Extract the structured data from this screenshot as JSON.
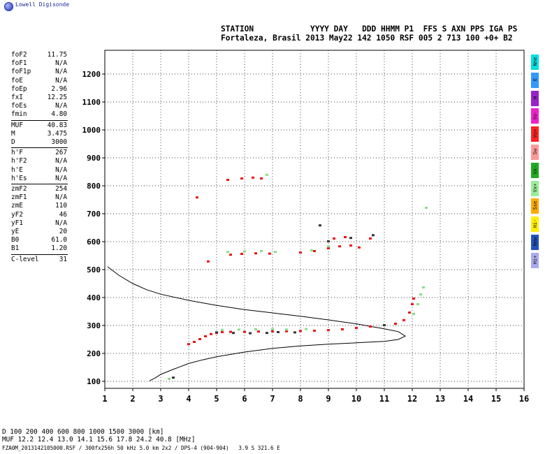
{
  "logo_text": "Lowell Digisonde",
  "header": {
    "line1": "STATION            YYYY DAY   DDD HHMM P1  FFS S AXN PPS IGA PS",
    "line2": "Fortaleza, Brasil 2013 May22 142 1050 RSF 005 2 713 100 +0+ B2"
  },
  "params": {
    "group1": [
      {
        "label": "foF2",
        "value": "11.75"
      },
      {
        "label": "foF1",
        "value": "N/A"
      },
      {
        "label": "foF1p",
        "value": "N/A"
      },
      {
        "label": "foE",
        "value": "N/A"
      },
      {
        "label": "foEp",
        "value": "2.96"
      },
      {
        "label": "fxI",
        "value": "12.25"
      },
      {
        "label": "foEs",
        "value": "N/A"
      },
      {
        "label": "fmin",
        "value": "4.80"
      }
    ],
    "group2": [
      {
        "label": "MUF",
        "value": "40.83"
      },
      {
        "label": "M",
        "value": "3.475"
      },
      {
        "label": "D",
        "value": "3000"
      }
    ],
    "group3": [
      {
        "label": "h'F",
        "value": "267"
      },
      {
        "label": "h'F2",
        "value": "N/A"
      },
      {
        "label": "h'E",
        "value": "N/A"
      },
      {
        "label": "h'Es",
        "value": "N/A"
      }
    ],
    "group4": [
      {
        "label": "zmF2",
        "value": "254"
      },
      {
        "label": "zmF1",
        "value": "N/A"
      },
      {
        "label": "zmE",
        "value": "110"
      },
      {
        "label": "yF2",
        "value": "46"
      },
      {
        "label": "yF1",
        "value": "N/A"
      },
      {
        "label": "yE",
        "value": "20"
      },
      {
        "label": "B0",
        "value": "61.0"
      },
      {
        "label": "B1",
        "value": "1.20"
      }
    ],
    "group5": [
      {
        "label": "C-level",
        "value": "31"
      }
    ]
  },
  "legend": [
    {
      "label": "Nne",
      "color": "#00e0e0"
    },
    {
      "label": "E",
      "color": "#3399ff"
    },
    {
      "label": "W",
      "color": "#9922cc"
    },
    {
      "label": "Vo-",
      "color": "#ee22cc"
    },
    {
      "label": "Vo+",
      "color": "#ff2222"
    },
    {
      "label": "Sw",
      "color": "#ff9999"
    },
    {
      "label": "Vx-",
      "color": "#22aa22"
    },
    {
      "label": "Vx+",
      "color": "#99ee99"
    },
    {
      "label": "Sse",
      "color": "#ffaa00"
    },
    {
      "label": "Hi-",
      "color": "#ffee00"
    },
    {
      "label": "New",
      "color": "#2255bb"
    },
    {
      "label": "Hi+",
      "color": "#aaaaee"
    }
  ],
  "mufTable": {
    "row1": "D     100   200   400   600   800  1000  1500  3000   [km]",
    "row2": "MUF  12.2  12.4  13.0  14.1  15.6  17.8  24.2  40.8   [MHz]"
  },
  "footer": "FZA0M_2013142105000.RSF / 300fx256h 50 kHz 5.0 km 2x2 / DPS-4 (904-904)   3.9 S 321.6 E",
  "chart_data": {
    "type": "scatter",
    "xlim": [
      1,
      16
    ],
    "ylim": [
      75,
      1285
    ],
    "x_ticks": [
      1,
      2,
      3,
      4,
      5,
      6,
      7,
      8,
      9,
      10,
      11,
      12,
      13,
      14,
      15,
      16
    ],
    "y_ticks": [
      100,
      200,
      300,
      400,
      500,
      600,
      700,
      800,
      900,
      1000,
      1100,
      1200
    ],
    "grid": true,
    "profile_curve": [
      [
        1.1,
        510
      ],
      [
        1.5,
        480
      ],
      [
        2.0,
        450
      ],
      [
        2.5,
        428
      ],
      [
        3.0,
        412
      ],
      [
        4.0,
        390
      ],
      [
        5.0,
        372
      ],
      [
        6.0,
        357
      ],
      [
        7.0,
        345
      ],
      [
        8.0,
        333
      ],
      [
        9.0,
        320
      ],
      [
        10.0,
        306
      ],
      [
        10.5,
        297
      ],
      [
        11.0,
        288
      ],
      [
        11.5,
        278
      ],
      [
        11.75,
        262
      ],
      [
        11.5,
        250
      ],
      [
        11.0,
        243
      ],
      [
        10.0,
        238
      ],
      [
        9.0,
        233
      ],
      [
        8.0,
        227
      ],
      [
        7.0,
        218
      ],
      [
        6.0,
        205
      ],
      [
        5.0,
        188
      ],
      [
        4.5,
        177
      ],
      [
        4.0,
        164
      ],
      [
        3.5,
        145
      ],
      [
        3.0,
        125
      ],
      [
        2.8,
        112
      ],
      [
        2.6,
        102
      ]
    ],
    "series": [
      {
        "color": "#ee1111",
        "points": [
          [
            4.0,
            232
          ],
          [
            4.2,
            240
          ],
          [
            4.4,
            250
          ],
          [
            4.6,
            260
          ],
          [
            4.8,
            268
          ],
          [
            5.0,
            272
          ],
          [
            5.2,
            275
          ],
          [
            5.5,
            276
          ],
          [
            6.0,
            276
          ],
          [
            6.5,
            277
          ],
          [
            7.0,
            278
          ],
          [
            7.5,
            278
          ],
          [
            8.0,
            279
          ],
          [
            8.5,
            280
          ],
          [
            9.0,
            282
          ],
          [
            9.5,
            285
          ],
          [
            10.0,
            290
          ],
          [
            10.5,
            295
          ],
          [
            11.0,
            300
          ],
          [
            11.4,
            305
          ],
          [
            11.7,
            318
          ],
          [
            11.9,
            345
          ],
          [
            12.0,
            375
          ],
          [
            12.05,
            395
          ],
          [
            4.3,
            757
          ],
          [
            5.4,
            820
          ],
          [
            5.9,
            825
          ],
          [
            6.3,
            828
          ],
          [
            6.6,
            825
          ],
          [
            5.5,
            552
          ],
          [
            5.9,
            555
          ],
          [
            6.4,
            557
          ],
          [
            6.9,
            556
          ],
          [
            8.0,
            560
          ],
          [
            8.5,
            565
          ],
          [
            9.0,
            575
          ],
          [
            9.4,
            582
          ],
          [
            9.8,
            585
          ],
          [
            10.1,
            578
          ],
          [
            10.5,
            610
          ],
          [
            9.2,
            610
          ],
          [
            9.6,
            615
          ],
          [
            4.7,
            528
          ]
        ]
      },
      {
        "color": "#88dd88",
        "points": [
          [
            5.2,
            283
          ],
          [
            5.8,
            284
          ],
          [
            6.4,
            285
          ],
          [
            7.0,
            286
          ],
          [
            7.5,
            284
          ],
          [
            8.2,
            286
          ],
          [
            12.05,
            340
          ],
          [
            12.2,
            375
          ],
          [
            12.3,
            410
          ],
          [
            12.4,
            435
          ],
          [
            5.4,
            562
          ],
          [
            6.0,
            564
          ],
          [
            6.6,
            565
          ],
          [
            7.1,
            562
          ],
          [
            8.4,
            568
          ],
          [
            9.0,
            582
          ],
          [
            6.8,
            838
          ],
          [
            12.5,
            720
          ],
          [
            3.3,
            108
          ]
        ]
      },
      {
        "color": "#333333",
        "points": [
          [
            5.0,
            274
          ],
          [
            5.6,
            272
          ],
          [
            6.2,
            271
          ],
          [
            6.8,
            272
          ],
          [
            7.2,
            275
          ],
          [
            7.8,
            274
          ],
          [
            3.45,
            112
          ],
          [
            9.0,
            600
          ],
          [
            9.8,
            612
          ],
          [
            8.7,
            657
          ],
          [
            10.6,
            622
          ],
          [
            11.0,
            300
          ]
        ]
      }
    ]
  }
}
